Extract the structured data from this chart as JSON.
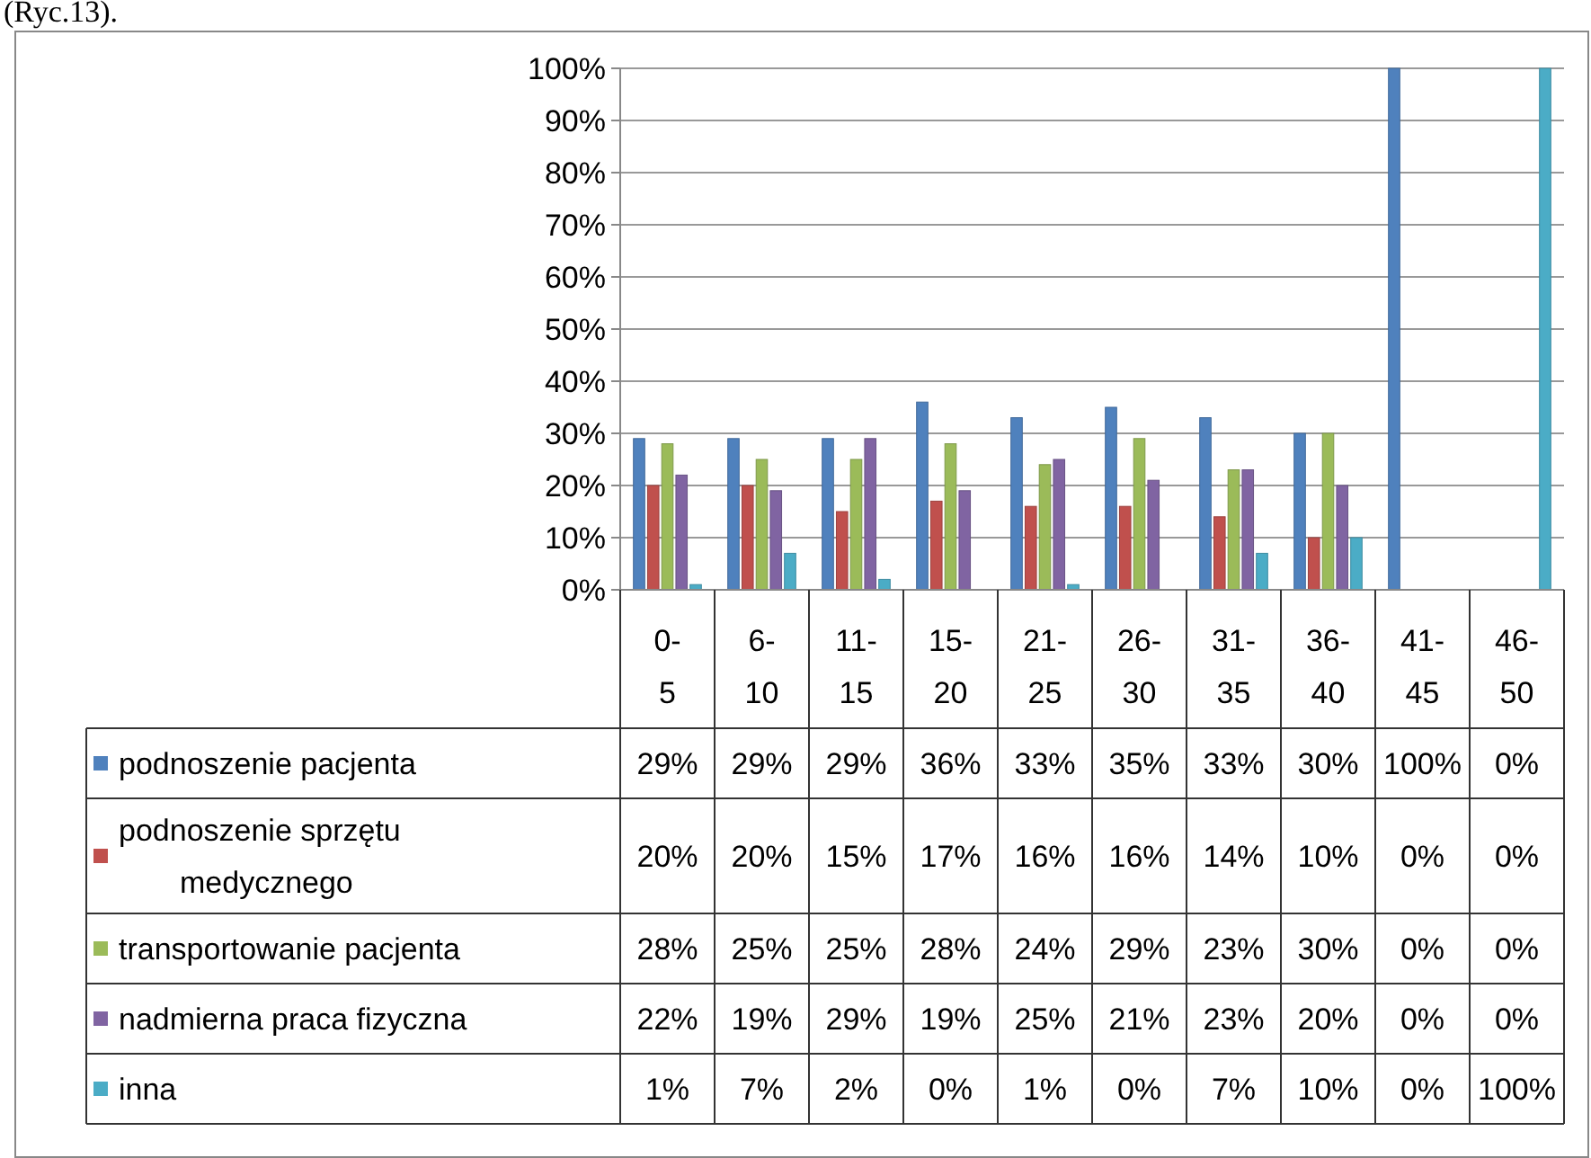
{
  "chart_data": {
    "type": "bar",
    "annotations": [
      "(Ryc.13)."
    ],
    "categories": [
      "0-5",
      "6-10",
      "11-15",
      "15-20",
      "21-25",
      "26-30",
      "31-35",
      "36-40",
      "41-45",
      "46-50"
    ],
    "series": [
      {
        "name": "podnoszenie pacjenta",
        "color": "#4f81bd",
        "values": [
          29,
          29,
          29,
          36,
          33,
          35,
          33,
          30,
          100,
          0
        ],
        "value_labels": [
          "29%",
          "29%",
          "29%",
          "36%",
          "33%",
          "35%",
          "33%",
          "30%",
          "100%",
          "0%"
        ]
      },
      {
        "name": "podnoszenie sprzętu medycznego",
        "color": "#c0504d",
        "values": [
          20,
          20,
          15,
          17,
          16,
          16,
          14,
          10,
          0,
          0
        ],
        "value_labels": [
          "20%",
          "20%",
          "15%",
          "17%",
          "16%",
          "16%",
          "14%",
          "10%",
          "0%",
          "0%"
        ]
      },
      {
        "name": "transportowanie pacjenta",
        "color": "#9bbb59",
        "values": [
          28,
          25,
          25,
          28,
          24,
          29,
          23,
          30,
          0,
          0
        ],
        "value_labels": [
          "28%",
          "25%",
          "25%",
          "28%",
          "24%",
          "29%",
          "23%",
          "30%",
          "0%",
          "0%"
        ]
      },
      {
        "name": "nadmierna praca fizyczna",
        "color": "#8064a2",
        "values": [
          22,
          19,
          29,
          19,
          25,
          21,
          23,
          20,
          0,
          0
        ],
        "value_labels": [
          "22%",
          "19%",
          "29%",
          "19%",
          "25%",
          "21%",
          "23%",
          "20%",
          "0%",
          "0%"
        ]
      },
      {
        "name": "inna",
        "color": "#4bacc6",
        "values": [
          1,
          7,
          2,
          0,
          1,
          0,
          7,
          10,
          0,
          100
        ],
        "value_labels": [
          "1%",
          "7%",
          "2%",
          "0%",
          "1%",
          "0%",
          "7%",
          "10%",
          "0%",
          "100%"
        ]
      }
    ],
    "ylim": [
      0,
      100
    ],
    "yticks": [
      {
        "value": 0,
        "label": "0%"
      },
      {
        "value": 10,
        "label": "10%"
      },
      {
        "value": 20,
        "label": "20%"
      },
      {
        "value": 30,
        "label": "30%"
      },
      {
        "value": 40,
        "label": "40%"
      },
      {
        "value": 50,
        "label": "50%"
      },
      {
        "value": 60,
        "label": "60%"
      },
      {
        "value": 70,
        "label": "70%"
      },
      {
        "value": 80,
        "label": "80%"
      },
      {
        "value": 90,
        "label": "90%"
      },
      {
        "value": 100,
        "label": "100%"
      }
    ],
    "grid": "y",
    "legend": "bottom"
  }
}
